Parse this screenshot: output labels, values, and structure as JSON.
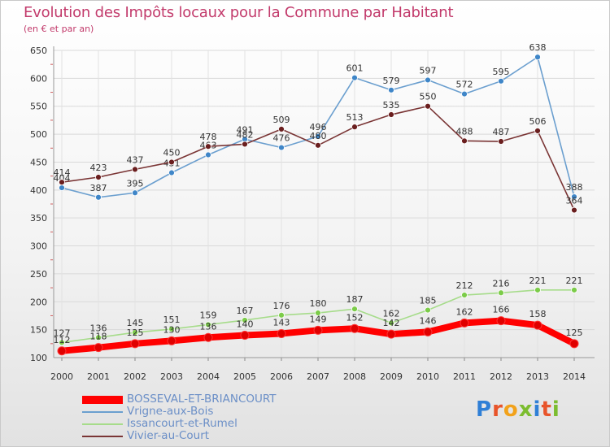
{
  "header": {
    "title": "Evolution des Impôts locaux pour la Commune par Habitant",
    "subtitle": "(en € et par an)"
  },
  "brand": {
    "text": "Proxiti",
    "letters": [
      "P",
      "r",
      "o",
      "x",
      "i",
      "t",
      "i"
    ]
  },
  "chart_data": {
    "type": "line",
    "title": "Evolution des Impôts locaux pour la Commune par Habitant",
    "subtitle": "(en € et par an)",
    "xlabel": "",
    "ylabel": "",
    "categories": [
      "2000",
      "2001",
      "2002",
      "2003",
      "2004",
      "2005",
      "2006",
      "2007",
      "2008",
      "2009",
      "2010",
      "2011",
      "2012",
      "2013",
      "2014"
    ],
    "ylim": [
      100,
      650
    ],
    "yticks": [
      100,
      150,
      200,
      250,
      300,
      350,
      400,
      450,
      500,
      550,
      600,
      650
    ],
    "grid": true,
    "legend_position": "bottom-left",
    "series": [
      {
        "name": "BOSSEVAL-ET-BRIANCOURT",
        "color": "#ff0000",
        "marker_color": "#e00000",
        "emphasis": "thick",
        "values": [
          112,
          118,
          125,
          130,
          136,
          140,
          143,
          149,
          152,
          142,
          146,
          162,
          166,
          158,
          125
        ]
      },
      {
        "name": "Vrigne-aux-Bois",
        "color": "#6b9fcf",
        "marker_color": "#3f86c8",
        "emphasis": "normal",
        "values": [
          404,
          387,
          395,
          431,
          463,
          491,
          476,
          496,
          601,
          579,
          597,
          572,
          595,
          638,
          388
        ]
      },
      {
        "name": "Issancourt-et-Rumel",
        "color": "#a6dc8a",
        "marker_color": "#7ccc49",
        "emphasis": "normal",
        "values": [
          127,
          136,
          145,
          151,
          159,
          167,
          176,
          180,
          187,
          162,
          185,
          212,
          216,
          221,
          221
        ]
      },
      {
        "name": "Vivier-au-Court",
        "color": "#7a3535",
        "marker_color": "#6a1e1e",
        "emphasis": "normal",
        "values": [
          414,
          423,
          437,
          450,
          478,
          482,
          509,
          480,
          513,
          535,
          550,
          488,
          487,
          506,
          364
        ]
      }
    ]
  }
}
